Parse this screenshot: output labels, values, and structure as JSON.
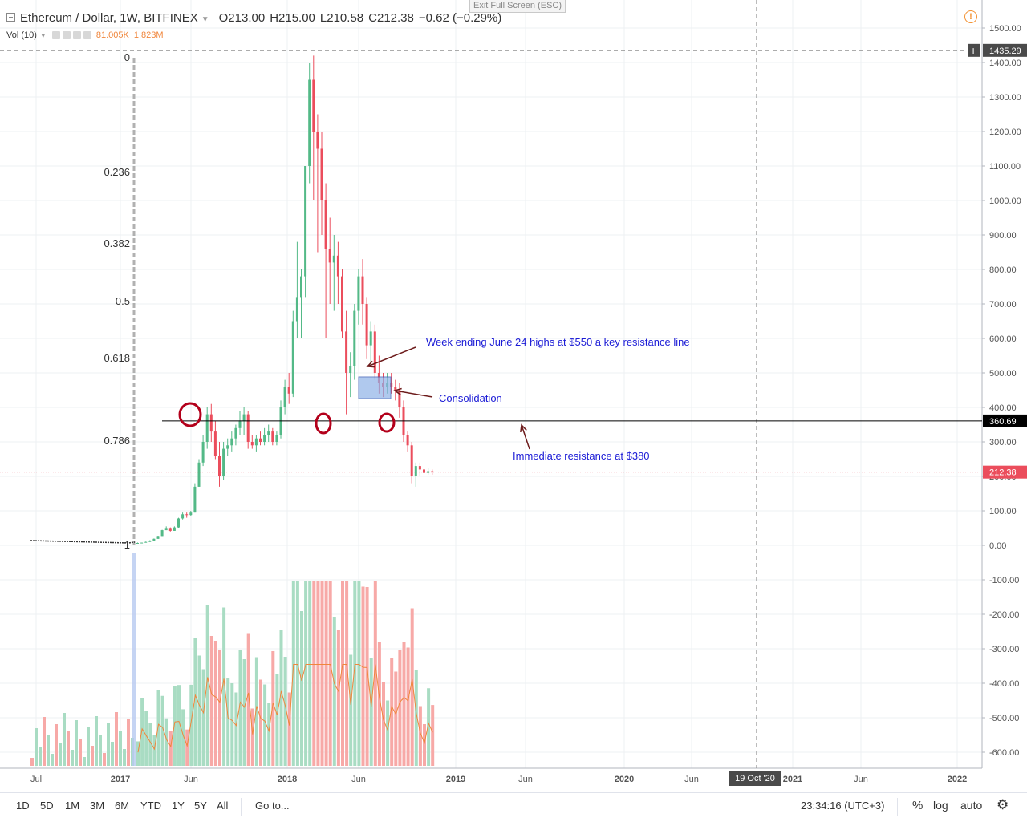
{
  "window": {
    "exit_fullscreen": "Exit Full Screen (ESC)"
  },
  "legend": {
    "symbol": "Ethereum / Dollar, 1W, BITFINEX",
    "open": "O213.00",
    "high": "H215.00",
    "low": "L210.58",
    "close": "C212.38",
    "change": "−0.62 (−0.29%)",
    "volume_label": "Vol (10)",
    "volume_value": "81.005K",
    "volume_ma": "1.823M"
  },
  "toolbar": {
    "ranges": [
      "1D",
      "5D",
      "1M",
      "3M",
      "6M",
      "YTD",
      "1Y",
      "5Y",
      "All"
    ],
    "goto": "Go to...",
    "clock": "23:34:16 (UTC+3)",
    "percent": "%",
    "log": "log",
    "auto": "auto",
    "settings_icon": "gear-icon"
  },
  "crosshair_date": "19 Oct '20",
  "colors": {
    "up": "#53b987",
    "down": "#eb4d5c",
    "up_vol": "#a9dcc3",
    "down_vol": "#f7a9a7",
    "fib": "#9e9e9e",
    "annotation_text": "#1b1bd6",
    "arrow": "#6d1b1b",
    "circle": "#b3001b",
    "vol_ma": "#f0863c",
    "box": "#8fb3e8"
  },
  "chart_data": {
    "type": "candlestick",
    "y_axis": {
      "ticks": [
        "1500.00",
        "1400.00",
        "1300.00",
        "1200.00",
        "1100.00",
        "1000.00",
        "900.00",
        "800.00",
        "700.00",
        "600.00",
        "500.00",
        "400.00",
        "300.00",
        "200.00",
        "100.00",
        "0.00",
        "-100.00",
        "-200.00",
        "-300.00",
        "-400.00",
        "-500.00",
        "-600.00"
      ],
      "crosshair_price": "1435.29",
      "horizontal_line_price": "360.69",
      "last_price": "212.38"
    },
    "x_axis": {
      "ticks": [
        "Jul",
        "2017",
        "Jun",
        "2018",
        "Jun",
        "2019",
        "Jun",
        "2020",
        "Jun",
        "2021",
        "Jun",
        "2022"
      ]
    },
    "fibonacci_levels": [
      "0",
      "0.236",
      "0.382",
      "0.5",
      "0.618",
      "0.786",
      "1"
    ],
    "annotations": {
      "resistance_550": "Week ending June 24 highs at $550 a key resistance line",
      "consolidation": "Consolidation",
      "resistance_380": "Immediate resistance at $380"
    },
    "ohlc_weekly_approx": [
      [
        7,
        8,
        7,
        7
      ],
      [
        7,
        8,
        7,
        8
      ],
      [
        8,
        11,
        8,
        10
      ],
      [
        10,
        15,
        10,
        14
      ],
      [
        14,
        20,
        14,
        19
      ],
      [
        19,
        28,
        19,
        27
      ],
      [
        27,
        45,
        27,
        44
      ],
      [
        44,
        55,
        44,
        48
      ],
      [
        48,
        52,
        40,
        42
      ],
      [
        42,
        55,
        42,
        52
      ],
      [
        52,
        80,
        50,
        78
      ],
      [
        78,
        95,
        75,
        90
      ],
      [
        90,
        95,
        80,
        88
      ],
      [
        88,
        100,
        85,
        95
      ],
      [
        95,
        180,
        95,
        170
      ],
      [
        170,
        250,
        170,
        240
      ],
      [
        240,
        320,
        230,
        300
      ],
      [
        300,
        400,
        280,
        380
      ],
      [
        380,
        410,
        300,
        330
      ],
      [
        330,
        360,
        250,
        260
      ],
      [
        260,
        300,
        170,
        200
      ],
      [
        200,
        300,
        190,
        280
      ],
      [
        280,
        310,
        260,
        290
      ],
      [
        290,
        330,
        270,
        310
      ],
      [
        310,
        350,
        290,
        340
      ],
      [
        340,
        390,
        320,
        360
      ],
      [
        360,
        400,
        320,
        380
      ],
      [
        380,
        390,
        280,
        300
      ],
      [
        300,
        320,
        280,
        290
      ],
      [
        290,
        320,
        270,
        310
      ],
      [
        310,
        330,
        290,
        300
      ],
      [
        300,
        340,
        290,
        320
      ],
      [
        320,
        350,
        300,
        330
      ],
      [
        330,
        340,
        290,
        300
      ],
      [
        300,
        330,
        290,
        320
      ],
      [
        320,
        420,
        310,
        400
      ],
      [
        400,
        480,
        380,
        460
      ],
      [
        460,
        500,
        410,
        440
      ],
      [
        440,
        680,
        430,
        650
      ],
      [
        650,
        880,
        600,
        720
      ],
      [
        720,
        800,
        600,
        780
      ],
      [
        780,
        1100,
        720,
        1100
      ],
      [
        1100,
        1400,
        1050,
        1350
      ],
      [
        1350,
        1420,
        1000,
        1200
      ],
      [
        1200,
        1250,
        850,
        1150
      ],
      [
        1150,
        1200,
        900,
        1000
      ],
      [
        1000,
        1050,
        600,
        860
      ],
      [
        860,
        950,
        700,
        820
      ],
      [
        820,
        900,
        680,
        840
      ],
      [
        840,
        880,
        700,
        780
      ],
      [
        780,
        800,
        600,
        620
      ],
      [
        620,
        680,
        380,
        500
      ],
      [
        500,
        560,
        430,
        520
      ],
      [
        520,
        700,
        480,
        680
      ],
      [
        680,
        800,
        640,
        780
      ],
      [
        780,
        830,
        640,
        700
      ],
      [
        700,
        720,
        540,
        580
      ],
      [
        580,
        650,
        520,
        620
      ],
      [
        620,
        640,
        480,
        500
      ],
      [
        500,
        550,
        440,
        470
      ],
      [
        470,
        500,
        430,
        460
      ],
      [
        460,
        500,
        440,
        470
      ],
      [
        470,
        500,
        440,
        460
      ],
      [
        460,
        480,
        420,
        450
      ],
      [
        450,
        470,
        370,
        400
      ],
      [
        400,
        420,
        300,
        320
      ],
      [
        320,
        330,
        270,
        290
      ],
      [
        290,
        300,
        180,
        200
      ],
      [
        200,
        240,
        170,
        230
      ],
      [
        230,
        240,
        200,
        220
      ],
      [
        220,
        230,
        200,
        210
      ],
      [
        210,
        225,
        205,
        215
      ],
      [
        215,
        220,
        205,
        212
      ]
    ]
  }
}
